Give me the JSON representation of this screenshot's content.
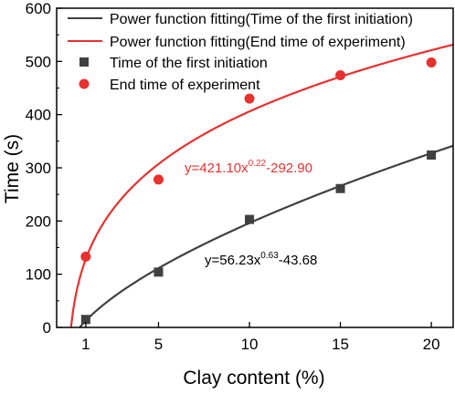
{
  "chart_data": {
    "type": "scatter",
    "xlabel": "Clay content (%)",
    "ylabel": "Time (s)",
    "xlim": [
      -0.6,
      21.2
    ],
    "ylim": [
      0,
      600
    ],
    "x_ticks": [
      1,
      5,
      10,
      15,
      20
    ],
    "y_ticks": [
      0,
      100,
      200,
      300,
      400,
      500,
      600
    ],
    "legend_position": "top-left",
    "grid": false,
    "series": [
      {
        "name": "Time of the first initiation",
        "kind": "scatter",
        "marker": "square",
        "color": "#404040",
        "x": [
          1,
          5,
          10,
          15,
          20
        ],
        "y": [
          15,
          104,
          203,
          261,
          324
        ]
      },
      {
        "name": "End time of experiment",
        "kind": "scatter",
        "marker": "circle",
        "color": "#e8312f",
        "x": [
          1,
          5,
          10,
          15,
          20
        ],
        "y": [
          133,
          278,
          430,
          474,
          498
        ]
      },
      {
        "name": "Power function fitting(Time of the first initiation)",
        "kind": "line",
        "color": "#404040",
        "a": 56.23,
        "b": 0.63,
        "c": -43.68
      },
      {
        "name": "Power function fitting(End time of experiment)",
        "kind": "line",
        "color": "#e8312f",
        "a": 421.1,
        "b": 0.22,
        "c": -292.9
      }
    ],
    "annotations": [
      {
        "text": "y=421.10x",
        "sup": "0.22",
        "tail": "-292.90",
        "color": "#e8312f"
      },
      {
        "text": "y=56.23x",
        "sup": "0.63",
        "tail": "-43.68",
        "color": "#000000"
      }
    ]
  }
}
